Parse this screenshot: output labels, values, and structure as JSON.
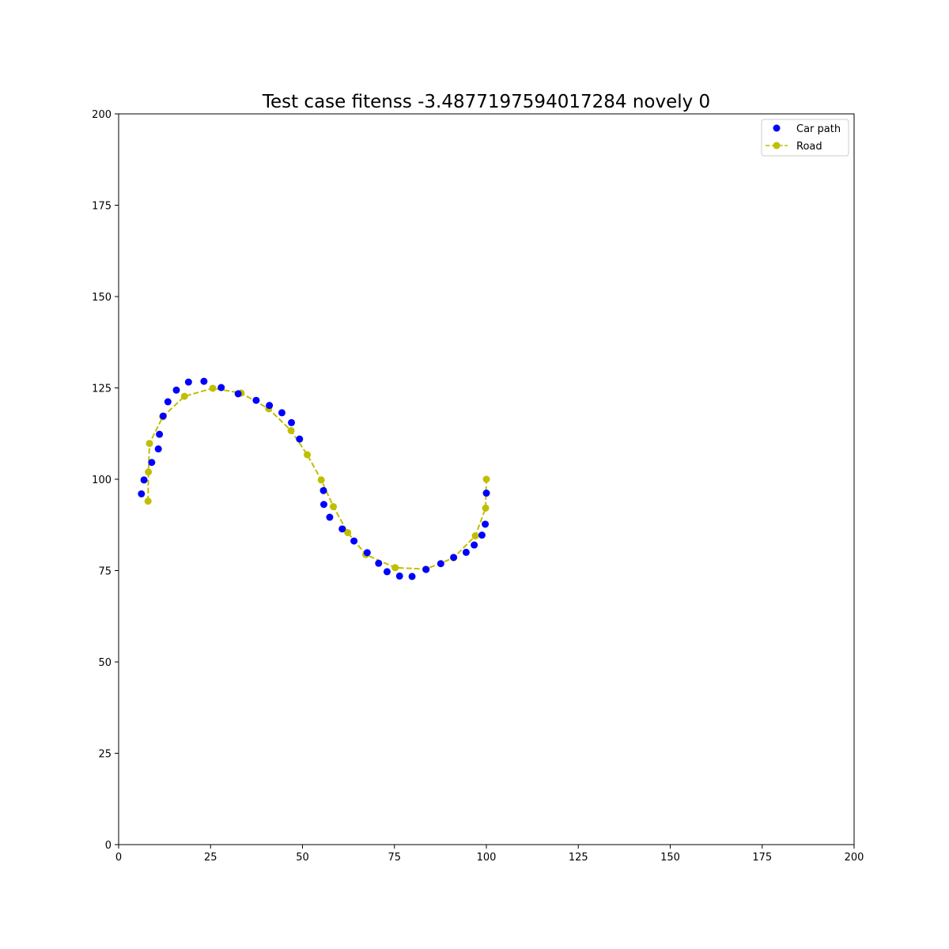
{
  "chart_data": {
    "type": "scatter",
    "title": "Test case fitenss -3.4877197594017284 novely 0",
    "xlabel": "",
    "ylabel": "",
    "xlim": [
      0,
      200
    ],
    "ylim": [
      0,
      200
    ],
    "x_ticks": [
      0,
      25,
      50,
      75,
      100,
      125,
      150,
      175,
      200
    ],
    "y_ticks": [
      0,
      25,
      50,
      75,
      100,
      125,
      150,
      175,
      200
    ],
    "grid": false,
    "legend_position": "top-right",
    "series": [
      {
        "name": "Car path",
        "style": "markers",
        "color": "#0000ff",
        "points": [
          [
            6.2,
            96.0
          ],
          [
            6.9,
            99.8
          ],
          [
            9.0,
            104.6
          ],
          [
            10.8,
            108.3
          ],
          [
            11.1,
            112.3
          ],
          [
            12.1,
            117.3
          ],
          [
            13.4,
            121.2
          ],
          [
            15.7,
            124.4
          ],
          [
            19.0,
            126.6
          ],
          [
            23.2,
            126.8
          ],
          [
            27.9,
            125.1
          ],
          [
            32.5,
            123.4
          ],
          [
            37.4,
            121.6
          ],
          [
            41.0,
            120.2
          ],
          [
            44.4,
            118.2
          ],
          [
            47.0,
            115.5
          ],
          [
            49.2,
            111.0
          ],
          [
            55.7,
            96.9
          ],
          [
            55.8,
            93.1
          ],
          [
            57.4,
            89.6
          ],
          [
            60.8,
            86.4
          ],
          [
            64.0,
            83.1
          ],
          [
            67.6,
            79.9
          ],
          [
            70.7,
            77.0
          ],
          [
            73.0,
            74.7
          ],
          [
            76.4,
            73.5
          ],
          [
            79.8,
            73.4
          ],
          [
            83.6,
            75.3
          ],
          [
            87.6,
            76.9
          ],
          [
            91.1,
            78.6
          ],
          [
            94.5,
            80.0
          ],
          [
            96.7,
            82.0
          ],
          [
            98.8,
            84.7
          ],
          [
            99.7,
            87.7
          ],
          [
            100.0,
            96.2
          ]
        ]
      },
      {
        "name": "Road",
        "style": "dashed-line-markers",
        "color": "#bfbf00",
        "points": [
          [
            8.0,
            94.0
          ],
          [
            8.1,
            102.0
          ],
          [
            8.4,
            109.8
          ],
          [
            12.0,
            117.1
          ],
          [
            17.9,
            122.7
          ],
          [
            25.6,
            124.9
          ],
          [
            33.3,
            123.6
          ],
          [
            40.8,
            119.3
          ],
          [
            46.9,
            113.3
          ],
          [
            51.3,
            106.7
          ],
          [
            55.1,
            99.8
          ],
          [
            58.4,
            92.5
          ],
          [
            62.3,
            85.4
          ],
          [
            67.2,
            79.4
          ],
          [
            75.2,
            75.8
          ],
          [
            83.5,
            75.4
          ],
          [
            91.1,
            78.5
          ],
          [
            97.0,
            84.5
          ],
          [
            99.8,
            92.1
          ],
          [
            100.0,
            100.0
          ]
        ]
      }
    ],
    "legend": [
      {
        "label": "Car path",
        "marker": "circle",
        "color": "#0000ff",
        "line": "none"
      },
      {
        "label": "Road",
        "marker": "circle",
        "color": "#bfbf00",
        "line": "dashed"
      }
    ]
  }
}
